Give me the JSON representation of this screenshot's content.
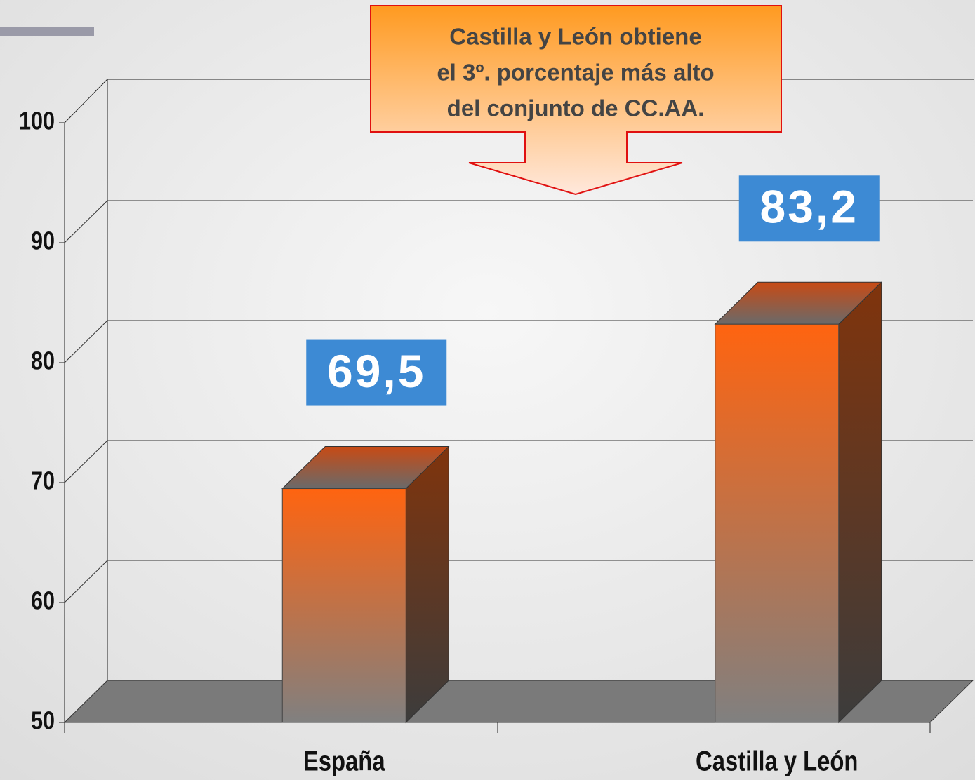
{
  "chart_data": {
    "type": "bar3d",
    "annotation": [
      "Castilla y León obtiene",
      "el 3º. porcentaje más alto",
      "del conjunto de CC.AA."
    ],
    "categories": [
      "España",
      "Castilla y León"
    ],
    "values": [
      69.5,
      83.2
    ],
    "value_labels": [
      "69,5",
      "83,2"
    ],
    "color": "#ff6a10",
    "ylim": [
      50,
      100
    ],
    "yticks": [
      50,
      60,
      70,
      80,
      90,
      100
    ],
    "grid": true
  }
}
